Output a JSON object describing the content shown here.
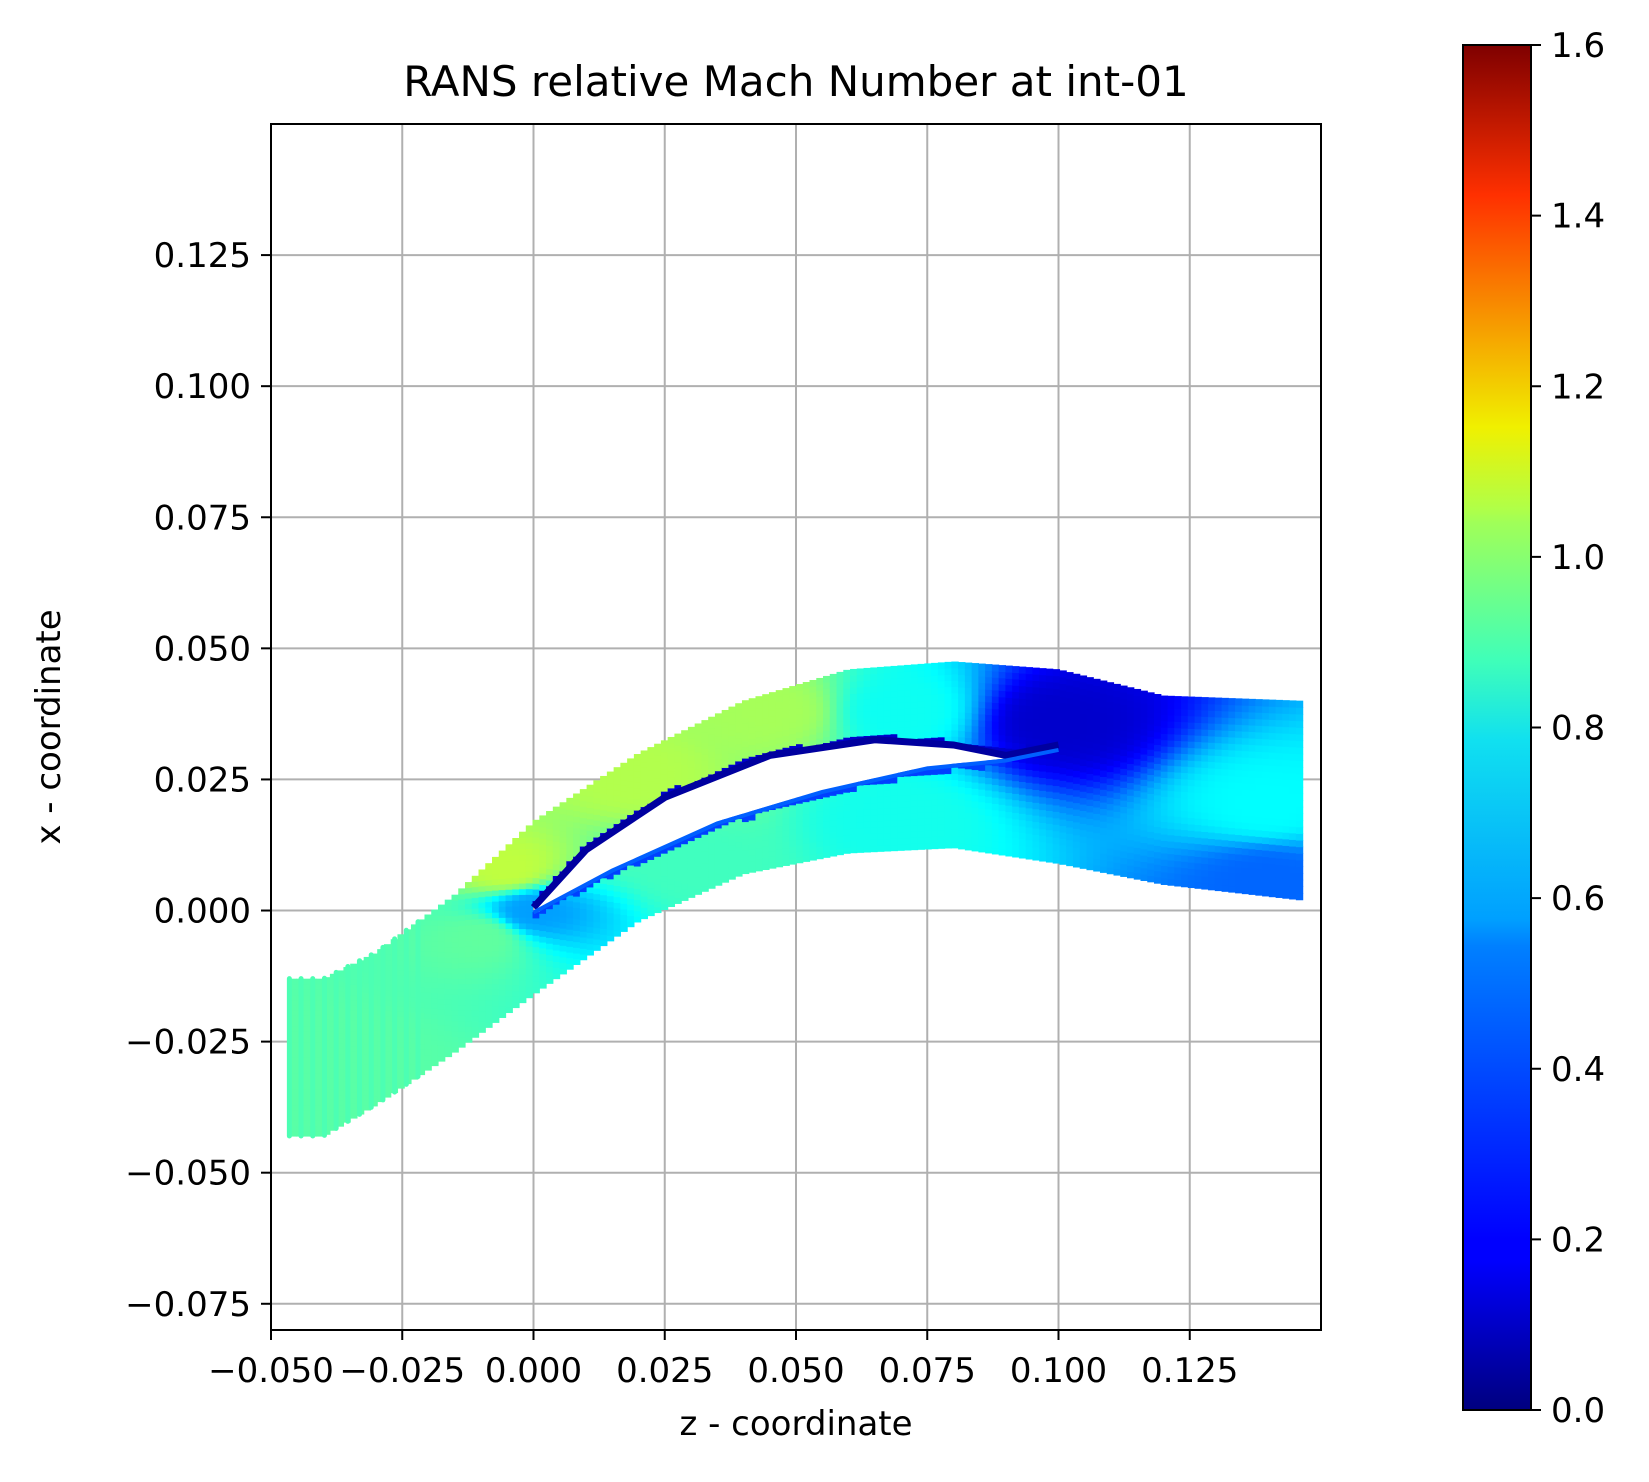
{
  "chart_data": {
    "type": "heatmap",
    "title": "RANS relative Mach Number at int-01",
    "xlabel": "z - coordinate",
    "ylabel": "x - coordinate",
    "xlim": [
      -0.05,
      0.15
    ],
    "ylim": [
      -0.08,
      0.15
    ],
    "xticks": [
      -0.05,
      -0.025,
      0.0,
      0.025,
      0.05,
      0.075,
      0.1,
      0.125
    ],
    "xtick_labels": [
      "−0.050",
      "−0.025",
      "0.000",
      "0.025",
      "0.050",
      "0.075",
      "0.100",
      "0.125"
    ],
    "yticks": [
      -0.075,
      -0.05,
      -0.025,
      0.0,
      0.025,
      0.05,
      0.075,
      0.1,
      0.125
    ],
    "ytick_labels": [
      "−0.075",
      "−0.050",
      "−0.025",
      "0.000",
      "0.025",
      "0.050",
      "0.075",
      "0.100",
      "0.125"
    ],
    "grid": true,
    "colormap": "jet",
    "colorbar": {
      "range": [
        0.0,
        1.6
      ],
      "ticks": [
        0.0,
        0.2,
        0.4,
        0.6,
        0.8,
        1.0,
        1.2,
        1.4,
        1.6
      ],
      "tick_labels": [
        "0.0",
        "0.2",
        "0.4",
        "0.6",
        "0.8",
        "1.0",
        "1.2",
        "1.4",
        "1.6"
      ]
    },
    "passage": {
      "inlet_z": [
        -0.0465,
        -0.022
      ],
      "inlet_x_range": [
        -0.043,
        -0.013
      ],
      "leading_edge": [
        0.0,
        0.0
      ],
      "trailing_edge_z": 0.1,
      "outlet_z": 0.1465,
      "outlet_x_range": [
        0.002,
        0.04
      ],
      "upper_boundary": [
        [
          -0.0465,
          -0.013
        ],
        [
          -0.04,
          -0.013
        ],
        [
          -0.03,
          -0.008
        ],
        [
          -0.015,
          0.003
        ],
        [
          0.0,
          0.017
        ],
        [
          0.02,
          0.03
        ],
        [
          0.04,
          0.04
        ],
        [
          0.06,
          0.046
        ],
        [
          0.08,
          0.0475
        ],
        [
          0.1,
          0.046
        ],
        [
          0.12,
          0.041
        ],
        [
          0.1465,
          0.04
        ]
      ],
      "lower_boundary": [
        [
          -0.0465,
          -0.043
        ],
        [
          -0.04,
          -0.043
        ],
        [
          -0.03,
          -0.037
        ],
        [
          -0.015,
          -0.027
        ],
        [
          0.0,
          -0.016
        ],
        [
          0.02,
          -0.002
        ],
        [
          0.04,
          0.007
        ],
        [
          0.06,
          0.011
        ],
        [
          0.08,
          0.012
        ],
        [
          0.1,
          0.009
        ],
        [
          0.12,
          0.005
        ],
        [
          0.1465,
          0.002
        ]
      ],
      "blade_suction_side": [
        [
          0.0,
          0.0
        ],
        [
          0.01,
          0.011
        ],
        [
          0.025,
          0.021
        ],
        [
          0.045,
          0.029
        ],
        [
          0.065,
          0.032
        ],
        [
          0.08,
          0.031
        ],
        [
          0.09,
          0.029
        ],
        [
          0.1,
          0.031
        ]
      ],
      "blade_pressure_side": [
        [
          0.0,
          0.0
        ],
        [
          0.015,
          0.008
        ],
        [
          0.035,
          0.017
        ],
        [
          0.055,
          0.023
        ],
        [
          0.075,
          0.0275
        ],
        [
          0.09,
          0.029
        ],
        [
          0.1,
          0.031
        ]
      ],
      "mach_samples": [
        {
          "z": -0.04,
          "x": -0.028,
          "mach": 0.74
        },
        {
          "z": -0.01,
          "x": -0.005,
          "mach": 0.75
        },
        {
          "z": -0.005,
          "x": 0.008,
          "mach": 0.9
        },
        {
          "z": 0.0,
          "x": 0.0,
          "mach": 0.45
        },
        {
          "z": 0.02,
          "x": 0.025,
          "mach": 0.88
        },
        {
          "z": 0.045,
          "x": 0.038,
          "mach": 0.86
        },
        {
          "z": 0.03,
          "x": 0.01,
          "mach": 0.7
        },
        {
          "z": 0.07,
          "x": 0.038,
          "mach": 0.62
        },
        {
          "z": 0.07,
          "x": 0.018,
          "mach": 0.63
        },
        {
          "z": 0.1,
          "x": 0.036,
          "mach": 0.12
        },
        {
          "z": 0.14,
          "x": 0.02,
          "mach": 0.6
        },
        {
          "z": 0.14,
          "x": 0.006,
          "mach": 0.36
        }
      ]
    }
  }
}
